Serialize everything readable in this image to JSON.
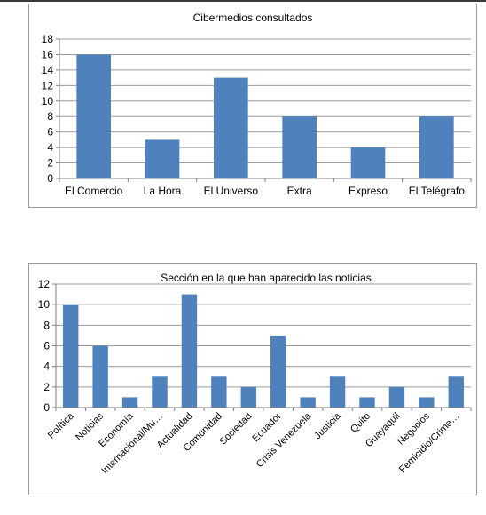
{
  "chart_data": [
    {
      "type": "bar",
      "title": "Cibermedios consultados",
      "xlabel": "",
      "ylabel": "",
      "categories": [
        "El Comercio",
        "La Hora",
        "El Universo",
        "Extra",
        "Expreso",
        "El Telégrafo"
      ],
      "values": [
        16,
        5,
        13,
        8,
        4,
        8
      ],
      "ylim": [
        0,
        18
      ],
      "yticks": [
        0,
        2,
        4,
        6,
        8,
        10,
        12,
        14,
        16,
        18
      ],
      "grid": true,
      "legend": "none",
      "bar_color": "#4f81bd"
    },
    {
      "type": "bar",
      "title": "Sección en la que han aparecido las noticias",
      "xlabel": "",
      "ylabel": "",
      "categories": [
        "Política",
        "Noticias",
        "Economía",
        "Internacional/Mu…",
        "Actualidad",
        "Comunidad",
        "Sociedad",
        "Ecuador",
        "Crisis Venezuela",
        "Justicia",
        "Quito",
        "Guayaquil",
        "Negocios",
        "Femicidio/Crime…"
      ],
      "values": [
        10,
        6,
        1,
        3,
        11,
        3,
        2,
        7,
        1,
        3,
        1,
        2,
        1,
        3
      ],
      "ylim": [
        0,
        12
      ],
      "yticks": [
        0,
        2,
        4,
        6,
        8,
        10,
        12
      ],
      "grid": true,
      "legend": "none",
      "bar_color": "#4f81bd"
    }
  ]
}
